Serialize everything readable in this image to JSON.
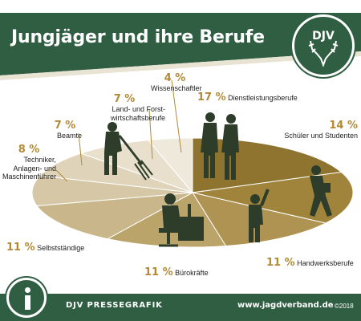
{
  "header": {
    "title": "Jungjäger und ihre Berufe",
    "logo_text": "DJV"
  },
  "footer": {
    "brand": "DJV PRESSEGRAFIK",
    "url": "www.jagdverband.de",
    "copyright": "©2018"
  },
  "colors": {
    "dark_green": "#2f5e43",
    "gold": "#b28a37"
  },
  "icons": [
    "info-icon",
    "deer-antlers-icon",
    "hunter-with-pitchfork-icon",
    "business-people-icon",
    "student-icon",
    "craftsman-icon",
    "office-worker-icon"
  ],
  "chart_data": {
    "type": "pie",
    "title": "Jungjäger und ihre Berufe",
    "unit": "%",
    "slices": [
      {
        "label": "Dienstleistungsberufe",
        "value": 17,
        "display": "17 %",
        "color": "#8f7430"
      },
      {
        "label": "Schüler und Studenten",
        "value": 14,
        "display": "14 %",
        "color": "#a1843c"
      },
      {
        "label": "Handwerksberufe",
        "value": 11,
        "display": "11 %",
        "color": "#ae9352"
      },
      {
        "label": "Bürokräfte",
        "value": 11,
        "display": "11 %",
        "color": "#bba46a"
      },
      {
        "label": "Selbstständige",
        "value": 11,
        "display": "11 %",
        "color": "#c9b68a"
      },
      {
        "label": "Techniker, Anlagen- und Maschinenführer",
        "value": 8,
        "display": "8 %",
        "color": "#d6c8a6"
      },
      {
        "label": "Beamte",
        "value": 7,
        "display": "7 %",
        "color": "#dfd4b9"
      },
      {
        "label": "Land- und Forstwirtschaftsberufe",
        "value": 7,
        "display": "7 %",
        "color": "#e8e0cd"
      },
      {
        "label": "Wissenschaftler",
        "value": 4,
        "display": "4 %",
        "color": "#efe9dc"
      }
    ],
    "labels": {
      "dienst": {
        "pct": "17 %",
        "name": "Dienstleistungsberufe"
      },
      "schueler": {
        "pct": "14 %",
        "name": "Schüler und Studenten"
      },
      "handwerk": {
        "pct": "11 %",
        "name": "Handwerksberufe"
      },
      "buero": {
        "pct": "11 %",
        "name": "Bürokräfte"
      },
      "selbst": {
        "pct": "11 %",
        "name": "Selbstständige"
      },
      "techniker": {
        "pct": "8 %",
        "name1": "Techniker,",
        "name2": "Anlagen- und",
        "name3": "Maschinenführer"
      },
      "beamte": {
        "pct": "7 %",
        "name": "Beamte"
      },
      "land": {
        "pct": "7 %",
        "name1": "Land- und Forst-",
        "name2": "wirtschaftsberufe"
      },
      "wissen": {
        "pct": "4 %",
        "name": "Wissenschaftler"
      }
    }
  }
}
